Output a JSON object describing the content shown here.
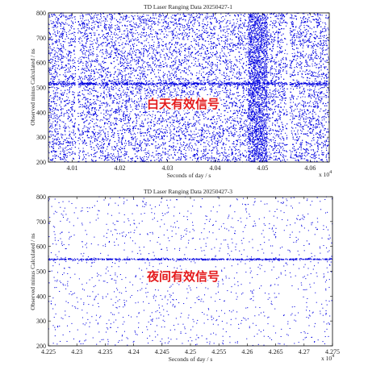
{
  "chart_data": [
    {
      "type": "scatter",
      "title": "TD Laser Ranging Data 20250427-1",
      "xlabel": "Seconds of day / s",
      "ylabel": "Observed minus Calculated / ns",
      "xlim": [
        40050,
        40640
      ],
      "ylim": [
        200,
        800
      ],
      "x_exponent_label": "x 10",
      "x_exponent_power": "4",
      "x_ticks": [
        40100,
        40200,
        40300,
        40400,
        40500,
        40600
      ],
      "x_tick_labels": [
        "4.01",
        "4.02",
        "4.03",
        "4.04",
        "4.05",
        "4.06"
      ],
      "y_ticks": [
        200,
        300,
        400,
        500,
        600,
        700,
        800
      ],
      "y_tick_labels": [
        "200",
        "300",
        "400",
        "500",
        "600",
        "700",
        "800"
      ],
      "noise_density": "very high",
      "signal_band_center": 515,
      "signal_band_width": 10,
      "gaps": [
        [
          40107,
          40112
        ],
        [
          40552,
          40557
        ]
      ],
      "dense_strip": [
        40470,
        40510
      ],
      "point_color": "#0000e0",
      "annotation": "白天有效信号",
      "annotation_color": "#e41a1c",
      "grid": false
    },
    {
      "type": "scatter",
      "title": "TD Laser Ranging Data 20250427-3",
      "xlabel": "Seconds of day / s",
      "ylabel": "Observed minus Calculated / ns",
      "xlim": [
        42250,
        42750
      ],
      "ylim": [
        200,
        800
      ],
      "x_exponent_label": "x 10",
      "x_exponent_power": "4",
      "x_ticks": [
        42250,
        42300,
        42350,
        42400,
        42450,
        42500,
        42550,
        42600,
        42650,
        42700,
        42750
      ],
      "x_tick_labels": [
        "4.225",
        "4.23",
        "4.235",
        "4.24",
        "4.245",
        "4.25",
        "4.255",
        "4.26",
        "4.265",
        "4.27",
        "4.275"
      ],
      "y_ticks": [
        200,
        300,
        400,
        500,
        600,
        700,
        800
      ],
      "y_tick_labels": [
        "200",
        "300",
        "400",
        "500",
        "600",
        "700",
        "800"
      ],
      "noise_density": "low",
      "signal_band_center": 548,
      "signal_band_width": 6,
      "point_color": "#0000e0",
      "annotation": "夜间有效信号",
      "annotation_color": "#e41a1c",
      "grid": false
    }
  ]
}
